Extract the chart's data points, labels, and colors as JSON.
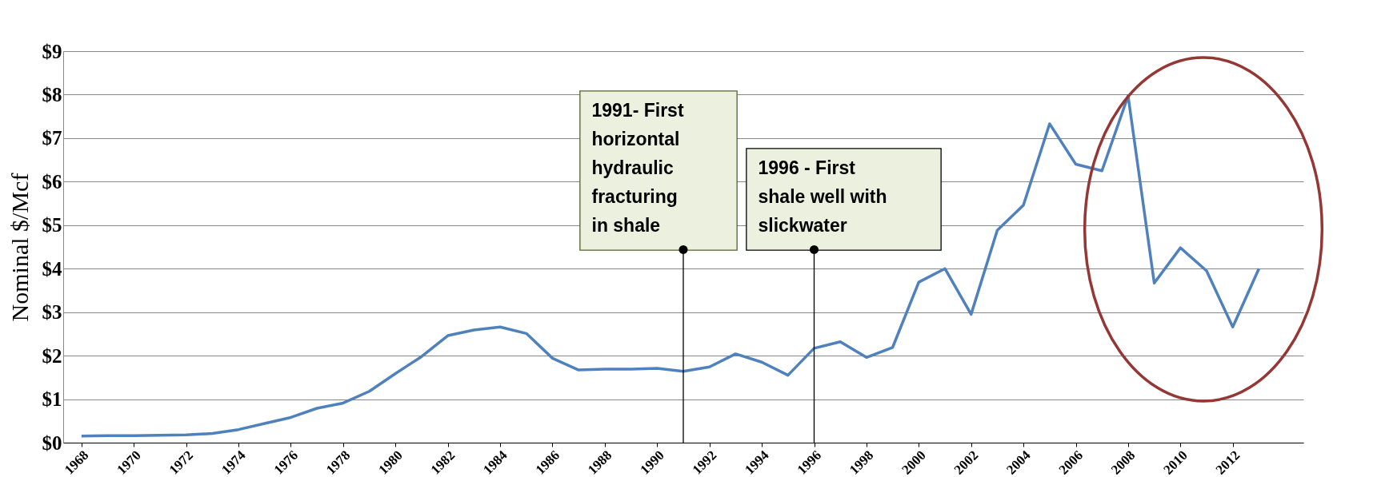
{
  "chart_data": {
    "type": "line",
    "ylabel": "Nominal $/Mcf",
    "x": [
      1968,
      1969,
      1970,
      1971,
      1972,
      1973,
      1974,
      1975,
      1976,
      1977,
      1978,
      1979,
      1980,
      1981,
      1982,
      1983,
      1984,
      1985,
      1986,
      1987,
      1988,
      1989,
      1990,
      1991,
      1992,
      1993,
      1994,
      1995,
      1996,
      1997,
      1998,
      1999,
      2000,
      2001,
      2002,
      2003,
      2004,
      2005,
      2006,
      2007,
      2008,
      2009,
      2010,
      2011,
      2012,
      2013
    ],
    "series": [
      {
        "color": "#4f81bd",
        "values": [
          0.15,
          0.16,
          0.16,
          0.17,
          0.18,
          0.21,
          0.3,
          0.44,
          0.58,
          0.79,
          0.91,
          1.18,
          1.59,
          1.98,
          2.46,
          2.59,
          2.66,
          2.51,
          1.94,
          1.67,
          1.69,
          1.69,
          1.71,
          1.64,
          1.74,
          2.04,
          1.85,
          1.55,
          2.17,
          2.32,
          1.96,
          2.19,
          3.69,
          4.0,
          2.95,
          4.88,
          5.46,
          7.33,
          6.4,
          6.25,
          7.97,
          3.67,
          4.48,
          3.95,
          2.66,
          4.0
        ]
      }
    ],
    "xlim": [
      1967.3,
      2014.7
    ],
    "xticks": [
      1968,
      1970,
      1972,
      1974,
      1976,
      1978,
      1980,
      1982,
      1984,
      1986,
      1988,
      1990,
      1992,
      1994,
      1996,
      1998,
      2000,
      2002,
      2004,
      2006,
      2008,
      2010,
      2012
    ],
    "ylim": [
      0,
      9
    ],
    "yticks": [
      {
        "value": 0,
        "label": "$0"
      },
      {
        "value": 1,
        "label": "$1"
      },
      {
        "value": 2,
        "label": "$2"
      },
      {
        "value": 3,
        "label": "$3"
      },
      {
        "value": 4,
        "label": "$4"
      },
      {
        "value": 5,
        "label": "$5"
      },
      {
        "value": 6,
        "label": "$6"
      },
      {
        "value": 7,
        "label": "$7"
      },
      {
        "value": 8,
        "label": "$8"
      },
      {
        "value": 9,
        "label": "$9"
      }
    ],
    "ref_lines": [
      {
        "axis": "x",
        "value": 1991,
        "label": "1991- First horizontal hydraulic fracturing in shale"
      },
      {
        "axis": "x",
        "value": 1996,
        "label": "1996 - First shale well with slickwater"
      }
    ],
    "grid": "y",
    "marker": "none",
    "line_style": "solid"
  }
}
